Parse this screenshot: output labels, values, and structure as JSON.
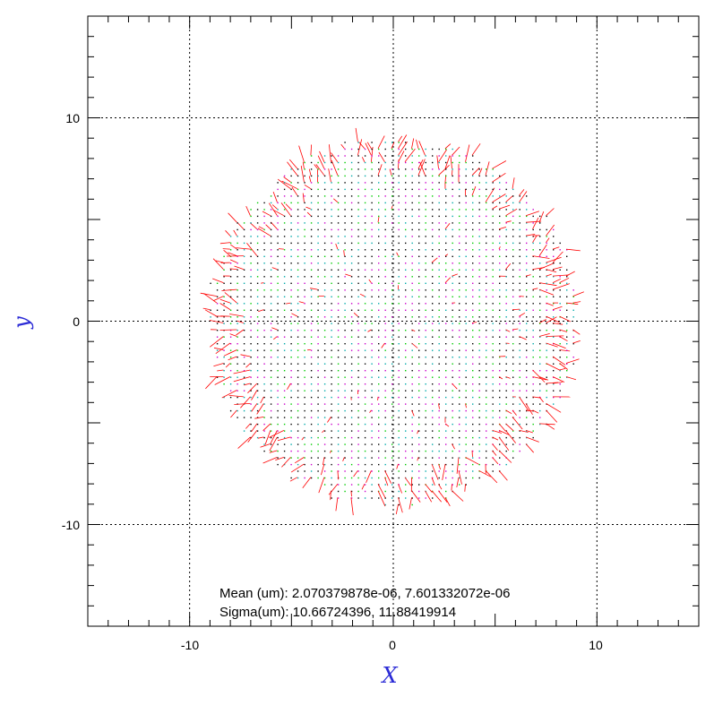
{
  "chart_data": {
    "type": "scatter",
    "title": "",
    "xlabel": "X",
    "ylabel": "y",
    "xlim": [
      -15,
      15
    ],
    "ylim": [
      -15,
      15
    ],
    "grid": true,
    "x_tick_labels": [
      "-10",
      "0",
      "10"
    ],
    "y_tick_labels": [
      "10",
      "0",
      "-10"
    ],
    "spot": {
      "shape": "circle",
      "center": [
        0,
        0
      ],
      "radius": 9,
      "grid_spacing": 0.33,
      "colors": {
        "dots": "#000000",
        "dots_alt1": "#00cc00",
        "dots_alt2": "#cc00cc",
        "dots_alt3": "#00aaaa",
        "vectors": "#ff0000"
      }
    },
    "stats": {
      "mean": "Mean (um): 2.070379878e-06, 7.601332072e-06",
      "sigma": "Sigma(um): 10.66724396, 11.88419914"
    }
  }
}
